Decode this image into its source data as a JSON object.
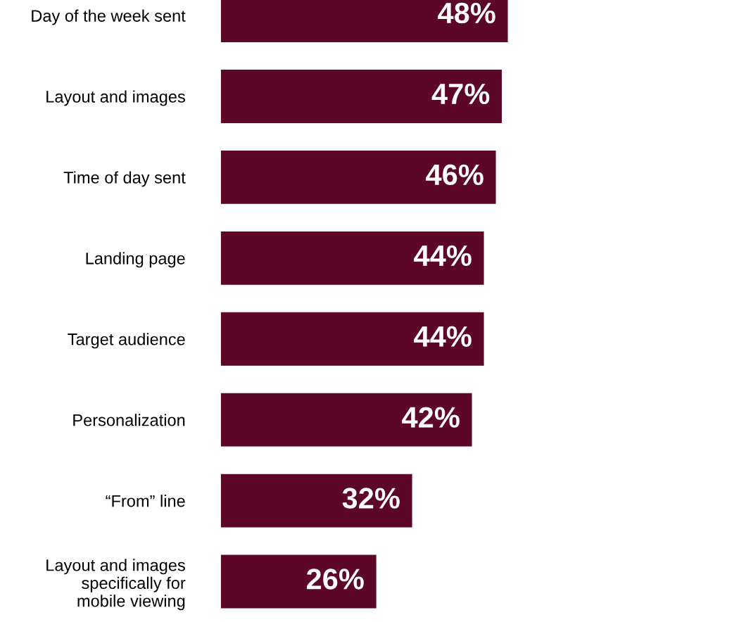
{
  "chart_data": {
    "type": "bar",
    "orientation": "horizontal",
    "categories": [
      "Day of the week sent",
      "Layout and images",
      "Time of day sent",
      "Landing page",
      "Target audience",
      "Personalization",
      "“From” line",
      "Layout and images\nspecifically for\nmobile viewing"
    ],
    "values": [
      48,
      47,
      46,
      44,
      44,
      42,
      32,
      26
    ],
    "value_labels": [
      "48%",
      "47%",
      "46%",
      "44%",
      "44%",
      "42%",
      "32%",
      "26%"
    ],
    "color": "#5c0628",
    "grid": false,
    "tick_labels": "y"
  }
}
